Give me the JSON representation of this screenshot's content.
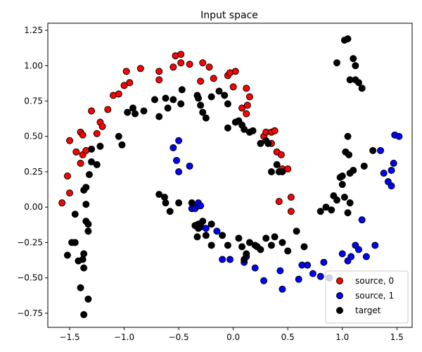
{
  "chart_data": {
    "type": "scatter",
    "title": "Input space",
    "xlabel": "",
    "ylabel": "",
    "xlim": [
      -1.7,
      1.64
    ],
    "ylim": [
      -0.85,
      1.3
    ],
    "xticks": [
      -1.5,
      -1.0,
      -0.5,
      0.0,
      0.5,
      1.0,
      1.5
    ],
    "xtick_labels": [
      "−1.5",
      "−1.0",
      "−0.5",
      "0.0",
      "0.5",
      "1.0",
      "1.5"
    ],
    "yticks": [
      -0.75,
      -0.5,
      -0.25,
      0.0,
      0.25,
      0.5,
      0.75,
      1.0,
      1.25
    ],
    "ytick_labels": [
      "−0.75",
      "−0.50",
      "−0.25",
      "0.00",
      "0.25",
      "0.50",
      "0.75",
      "1.00",
      "1.25"
    ],
    "grid": false,
    "legend_position": "bottom-right",
    "series": [
      {
        "name": "source, 0",
        "color": "#ff0000",
        "points": [
          [
            -1.57,
            0.03
          ],
          [
            -1.52,
            0.22
          ],
          [
            -1.5,
            0.1
          ],
          [
            -1.5,
            0.47
          ],
          [
            -1.44,
            0.39
          ],
          [
            -1.4,
            0.53
          ],
          [
            -1.38,
            0.51
          ],
          [
            -1.4,
            0.31
          ],
          [
            -1.38,
            0.37
          ],
          [
            -1.35,
            0.4
          ],
          [
            -1.3,
            0.68
          ],
          [
            -1.22,
            0.6
          ],
          [
            -1.2,
            0.57
          ],
          [
            -1.25,
            0.52
          ],
          [
            -1.15,
            0.69
          ],
          [
            -1.1,
            0.79
          ],
          [
            -1.05,
            0.8
          ],
          [
            -1.0,
            0.86
          ],
          [
            -0.98,
            0.96
          ],
          [
            -0.95,
            0.88
          ],
          [
            -0.85,
            0.98
          ],
          [
            -0.68,
            0.96
          ],
          [
            -0.68,
            0.9
          ],
          [
            -0.55,
            0.99
          ],
          [
            -0.53,
            1.07
          ],
          [
            -0.48,
            1.08
          ],
          [
            -0.48,
            1.02
          ],
          [
            -0.4,
            1.01
          ],
          [
            -0.3,
            0.89
          ],
          [
            -0.28,
            1.02
          ],
          [
            -0.22,
            0.99
          ],
          [
            -0.18,
            0.91
          ],
          [
            -0.05,
            0.93
          ],
          [
            -0.03,
            0.95
          ],
          [
            0.02,
            0.96
          ],
          [
            0.0,
            0.85
          ],
          [
            0.12,
            0.84
          ],
          [
            0.15,
            0.78
          ],
          [
            0.13,
            0.72
          ],
          [
            0.12,
            0.66
          ],
          [
            0.08,
            0.7
          ],
          [
            0.28,
            0.5
          ],
          [
            0.3,
            0.53
          ],
          [
            0.35,
            0.53
          ],
          [
            0.38,
            0.54
          ],
          [
            0.35,
            0.45
          ],
          [
            0.4,
            0.39
          ],
          [
            0.44,
            0.37
          ],
          [
            0.45,
            0.27
          ],
          [
            0.5,
            0.27
          ],
          [
            0.42,
            0.04
          ],
          [
            0.53,
            0.07
          ],
          [
            0.53,
            -0.03
          ]
        ]
      },
      {
        "name": "source, 1",
        "color": "#0000ff",
        "points": [
          [
            -0.55,
            0.42
          ],
          [
            -0.5,
            0.47
          ],
          [
            -0.52,
            0.33
          ],
          [
            -0.5,
            0.25
          ],
          [
            -0.4,
            0.29
          ],
          [
            -0.38,
            -0.01
          ],
          [
            -0.35,
            -0.01
          ],
          [
            -0.32,
            0.01
          ],
          [
            -0.32,
            0.03
          ],
          [
            -0.3,
            0.01
          ],
          [
            -0.3,
            -0.14
          ],
          [
            -0.25,
            -0.15
          ],
          [
            -0.15,
            -0.17
          ],
          [
            -0.1,
            -0.37
          ],
          [
            -0.03,
            -0.37
          ],
          [
            0.1,
            -0.39
          ],
          [
            0.12,
            -0.35
          ],
          [
            0.2,
            -0.43
          ],
          [
            0.28,
            -0.52
          ],
          [
            0.43,
            -0.45
          ],
          [
            0.45,
            -0.58
          ],
          [
            0.6,
            -0.51
          ],
          [
            0.63,
            -0.41
          ],
          [
            0.68,
            -0.41
          ],
          [
            0.73,
            -0.47
          ],
          [
            0.8,
            -0.49
          ],
          [
            0.83,
            -0.39
          ],
          [
            0.88,
            -0.5
          ],
          [
            1.0,
            -0.33
          ],
          [
            1.05,
            -0.38
          ],
          [
            1.08,
            -0.35
          ],
          [
            1.12,
            -0.27
          ],
          [
            1.15,
            -0.3
          ],
          [
            1.18,
            -0.09
          ],
          [
            1.22,
            -0.35
          ],
          [
            1.3,
            -0.27
          ],
          [
            1.35,
            0.4
          ],
          [
            1.38,
            0.24
          ],
          [
            1.42,
            0.18
          ],
          [
            1.45,
            0.15
          ],
          [
            1.45,
            0.26
          ],
          [
            1.47,
            0.31
          ],
          [
            1.48,
            0.51
          ],
          [
            1.52,
            0.5
          ]
        ]
      },
      {
        "name": "target",
        "color": "#000000",
        "points": [
          [
            -1.52,
            -0.34
          ],
          [
            -1.48,
            -0.25
          ],
          [
            -1.45,
            -0.25
          ],
          [
            -1.45,
            -0.05
          ],
          [
            -1.42,
            -0.38
          ],
          [
            -1.4,
            -0.57
          ],
          [
            -1.38,
            -0.37
          ],
          [
            -1.37,
            -0.33
          ],
          [
            -1.37,
            -0.43
          ],
          [
            -1.37,
            0.12
          ],
          [
            -1.35,
            0.02
          ],
          [
            -1.35,
            -0.1
          ],
          [
            -1.33,
            -0.12
          ],
          [
            -1.33,
            -0.17
          ],
          [
            -1.33,
            -0.65
          ],
          [
            -1.37,
            -0.76
          ],
          [
            -1.35,
            0.14
          ],
          [
            -1.32,
            0.23
          ],
          [
            -1.3,
            0.32
          ],
          [
            -1.3,
            0.41
          ],
          [
            -1.25,
            0.3
          ],
          [
            -1.22,
            0.43
          ],
          [
            -1.05,
            0.5
          ],
          [
            -1.02,
            0.44
          ],
          [
            -0.97,
            0.67
          ],
          [
            -0.92,
            0.7
          ],
          [
            -0.9,
            0.66
          ],
          [
            -0.82,
            0.68
          ],
          [
            -0.72,
            0.76
          ],
          [
            -0.68,
            0.64
          ],
          [
            -0.62,
            0.77
          ],
          [
            -0.6,
            0.7
          ],
          [
            -0.55,
            0.76
          ],
          [
            -0.48,
            0.73
          ],
          [
            -0.47,
            0.83
          ],
          [
            -0.33,
            0.79
          ],
          [
            -0.32,
            0.77
          ],
          [
            -0.3,
            0.72
          ],
          [
            -0.28,
            0.67
          ],
          [
            -0.25,
            0.63
          ],
          [
            -0.2,
            0.78
          ],
          [
            -0.13,
            0.82
          ],
          [
            -0.08,
            0.79
          ],
          [
            -0.05,
            0.73
          ],
          [
            -0.05,
            0.56
          ],
          [
            0.02,
            0.6
          ],
          [
            0.05,
            0.61
          ],
          [
            0.08,
            0.58
          ],
          [
            0.1,
            0.55
          ],
          [
            0.15,
            0.53
          ],
          [
            0.18,
            0.54
          ],
          [
            0.25,
            0.45
          ],
          [
            0.3,
            0.47
          ],
          [
            0.32,
            0.45
          ],
          [
            0.35,
            0.25
          ],
          [
            0.4,
            0.3
          ],
          [
            0.42,
            0.25
          ],
          [
            0.45,
            0.25
          ],
          [
            -0.68,
            0.09
          ],
          [
            -0.63,
            0.07
          ],
          [
            -0.62,
            0.03
          ],
          [
            -0.58,
            -0.03
          ],
          [
            -0.5,
            0.03
          ],
          [
            -0.38,
            0.03
          ],
          [
            -0.35,
            -0.13
          ],
          [
            -0.32,
            -0.15
          ],
          [
            -0.32,
            -0.12
          ],
          [
            -0.3,
            -0.12
          ],
          [
            -0.28,
            -0.1
          ],
          [
            -0.33,
            -0.21
          ],
          [
            -0.25,
            -0.2
          ],
          [
            -0.2,
            -0.12
          ],
          [
            -0.2,
            -0.27
          ],
          [
            -0.1,
            -0.2
          ],
          [
            -0.05,
            -0.27
          ],
          [
            0.05,
            -0.22
          ],
          [
            0.08,
            -0.28
          ],
          [
            0.1,
            -0.37
          ],
          [
            0.12,
            -0.33
          ],
          [
            0.15,
            -0.25
          ],
          [
            0.2,
            -0.27
          ],
          [
            0.22,
            -0.28
          ],
          [
            0.25,
            -0.3
          ],
          [
            0.3,
            -0.22
          ],
          [
            0.35,
            -0.27
          ],
          [
            0.38,
            -0.21
          ],
          [
            0.45,
            -0.25
          ],
          [
            0.5,
            -0.31
          ],
          [
            0.58,
            -0.17
          ],
          [
            0.65,
            -0.28
          ],
          [
            0.8,
            -0.03
          ],
          [
            0.85,
            0.0
          ],
          [
            0.9,
            -0.02
          ],
          [
            0.92,
            0.08
          ],
          [
            0.95,
            0.05
          ],
          [
            0.98,
            0.21
          ],
          [
            1.0,
            0.22
          ],
          [
            1.0,
            0.16
          ],
          [
            1.02,
            0.07
          ],
          [
            1.03,
            0.39
          ],
          [
            1.05,
            0.5
          ],
          [
            1.06,
            0.37
          ],
          [
            1.07,
            0.24
          ],
          [
            1.07,
            0.03
          ],
          [
            1.05,
            -0.04
          ],
          [
            1.1,
            0.26
          ],
          [
            1.2,
            0.29
          ],
          [
            1.28,
            0.4
          ],
          [
            0.95,
            1.02
          ],
          [
            1.02,
            1.18
          ],
          [
            1.05,
            1.19
          ],
          [
            1.07,
            0.9
          ],
          [
            1.1,
            1.05
          ],
          [
            1.12,
            1.0
          ],
          [
            1.12,
            0.9
          ],
          [
            1.15,
            0.88
          ],
          [
            1.18,
            0.84
          ]
        ]
      }
    ]
  }
}
